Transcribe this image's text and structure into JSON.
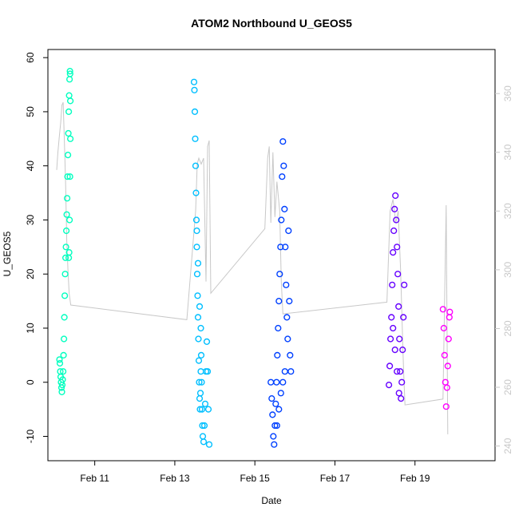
{
  "chart_data": {
    "type": "scatter",
    "title": "ATOM2 Northbound U_GEOS5",
    "xlabel": "Date",
    "ylabel": "U_GEOS5",
    "x_unit": "days (February)",
    "xlim": [
      9.83,
      21.0
    ],
    "ylim": [
      -14.5,
      61.5
    ],
    "x_ticks": [
      {
        "value": 11,
        "label": "Feb 11"
      },
      {
        "value": 13,
        "label": "Feb 13"
      },
      {
        "value": 15,
        "label": "Feb 15"
      },
      {
        "value": 17,
        "label": "Feb 17"
      },
      {
        "value": 19,
        "label": "Feb 19"
      }
    ],
    "y_ticks": [
      {
        "value": -10,
        "label": "-10"
      },
      {
        "value": 0,
        "label": "0"
      },
      {
        "value": 10,
        "label": "10"
      },
      {
        "value": 20,
        "label": "20"
      },
      {
        "value": 30,
        "label": "30"
      },
      {
        "value": 40,
        "label": "40"
      },
      {
        "value": 50,
        "label": "50"
      },
      {
        "value": 60,
        "label": "60"
      }
    ],
    "y2lim": [
      235,
      375
    ],
    "y2_ticks": [
      {
        "value": 240,
        "label": "240"
      },
      {
        "value": 260,
        "label": "260"
      },
      {
        "value": 280,
        "label": "280"
      },
      {
        "value": 300,
        "label": "300"
      },
      {
        "value": 320,
        "label": "320"
      },
      {
        "value": 340,
        "label": "340"
      },
      {
        "value": 360,
        "label": "360"
      }
    ],
    "grid": false,
    "series": [
      {
        "color": "#00ffbf",
        "points": [
          [
            10.12,
            4.2
          ],
          [
            10.13,
            3.5
          ],
          [
            10.14,
            2.0
          ],
          [
            10.15,
            1.0
          ],
          [
            10.16,
            0.0
          ],
          [
            10.17,
            -1.0
          ],
          [
            10.18,
            -1.8
          ],
          [
            10.19,
            -0.5
          ],
          [
            10.2,
            0.5
          ],
          [
            10.21,
            2.0
          ],
          [
            10.22,
            5.0
          ],
          [
            10.23,
            8.0
          ],
          [
            10.24,
            12.0
          ],
          [
            10.25,
            16.0
          ],
          [
            10.26,
            20.0
          ],
          [
            10.27,
            23.0
          ],
          [
            10.28,
            25.0
          ],
          [
            10.29,
            28.0
          ],
          [
            10.3,
            31.0
          ],
          [
            10.31,
            34.0
          ],
          [
            10.32,
            38.0
          ],
          [
            10.33,
            42.0
          ],
          [
            10.34,
            46.0
          ],
          [
            10.35,
            50.0
          ],
          [
            10.36,
            53.0
          ],
          [
            10.37,
            56.0
          ],
          [
            10.38,
            57.5
          ],
          [
            10.385,
            57.0
          ],
          [
            10.39,
            52.0
          ],
          [
            10.39,
            45.0
          ],
          [
            10.38,
            38.0
          ],
          [
            10.37,
            30.0
          ],
          [
            10.36,
            24.0
          ],
          [
            10.35,
            23.0
          ]
        ]
      },
      {
        "color": "#00bfff",
        "points": [
          [
            13.48,
            55.5
          ],
          [
            13.49,
            54.0
          ],
          [
            13.5,
            50.0
          ],
          [
            13.51,
            45.0
          ],
          [
            13.52,
            40.0
          ],
          [
            13.53,
            35.0
          ],
          [
            13.54,
            30.0
          ],
          [
            13.55,
            25.0
          ],
          [
            13.56,
            20.0
          ],
          [
            13.57,
            16.0
          ],
          [
            13.58,
            12.0
          ],
          [
            13.59,
            8.0
          ],
          [
            13.6,
            4.0
          ],
          [
            13.61,
            0.0
          ],
          [
            13.62,
            -3.0
          ],
          [
            13.63,
            -5.0
          ],
          [
            13.64,
            -2.0
          ],
          [
            13.65,
            2.0
          ],
          [
            13.66,
            5.0
          ],
          [
            13.67,
            0.0
          ],
          [
            13.68,
            -5.0
          ],
          [
            13.69,
            -8.0
          ],
          [
            13.7,
            -10.0
          ],
          [
            13.72,
            -11.0
          ],
          [
            13.74,
            -8.0
          ],
          [
            13.76,
            -4.0
          ],
          [
            13.78,
            2.0
          ],
          [
            13.8,
            7.5
          ],
          [
            13.82,
            2.0
          ],
          [
            13.84,
            -5.0
          ],
          [
            13.86,
            -11.5
          ],
          [
            13.55,
            28.0
          ],
          [
            13.58,
            22.0
          ],
          [
            13.62,
            14.0
          ],
          [
            13.65,
            10.0
          ]
        ]
      },
      {
        "color": "#0040ff",
        "points": [
          [
            15.4,
            0.0
          ],
          [
            15.42,
            -3.0
          ],
          [
            15.44,
            -6.0
          ],
          [
            15.46,
            -10.0
          ],
          [
            15.48,
            -11.5
          ],
          [
            15.5,
            -8.0
          ],
          [
            15.52,
            -4.0
          ],
          [
            15.54,
            0.0
          ],
          [
            15.56,
            5.0
          ],
          [
            15.58,
            10.0
          ],
          [
            15.6,
            15.0
          ],
          [
            15.62,
            20.0
          ],
          [
            15.64,
            25.0
          ],
          [
            15.66,
            30.0
          ],
          [
            15.68,
            38.0
          ],
          [
            15.7,
            44.5
          ],
          [
            15.72,
            40.0
          ],
          [
            15.74,
            32.0
          ],
          [
            15.76,
            25.0
          ],
          [
            15.78,
            18.0
          ],
          [
            15.8,
            12.0
          ],
          [
            15.82,
            8.0
          ],
          [
            15.84,
            28.0
          ],
          [
            15.86,
            15.0
          ],
          [
            15.88,
            5.0
          ],
          [
            15.9,
            2.0
          ],
          [
            15.55,
            -8.0
          ],
          [
            15.6,
            -5.0
          ],
          [
            15.65,
            -2.0
          ],
          [
            15.7,
            0.0
          ],
          [
            15.75,
            2.0
          ]
        ]
      },
      {
        "color": "#6600ff",
        "points": [
          [
            18.35,
            -0.5
          ],
          [
            18.37,
            3.0
          ],
          [
            18.39,
            8.0
          ],
          [
            18.41,
            12.0
          ],
          [
            18.43,
            18.0
          ],
          [
            18.45,
            24.0
          ],
          [
            18.47,
            28.0
          ],
          [
            18.49,
            32.0
          ],
          [
            18.51,
            34.5
          ],
          [
            18.53,
            30.0
          ],
          [
            18.55,
            25.0
          ],
          [
            18.57,
            20.0
          ],
          [
            18.59,
            14.0
          ],
          [
            18.61,
            8.0
          ],
          [
            18.63,
            2.0
          ],
          [
            18.65,
            -3.0
          ],
          [
            18.67,
            0.0
          ],
          [
            18.69,
            6.0
          ],
          [
            18.71,
            12.0
          ],
          [
            18.73,
            18.0
          ],
          [
            18.45,
            10.0
          ],
          [
            18.5,
            6.0
          ],
          [
            18.55,
            2.0
          ],
          [
            18.6,
            -2.0
          ]
        ]
      },
      {
        "color": "#ff00ff",
        "points": [
          [
            19.7,
            13.5
          ],
          [
            19.72,
            10.0
          ],
          [
            19.74,
            5.0
          ],
          [
            19.76,
            0.0
          ],
          [
            19.78,
            -4.5
          ],
          [
            19.8,
            -1.0
          ],
          [
            19.82,
            3.0
          ],
          [
            19.84,
            8.0
          ],
          [
            19.86,
            12.0
          ],
          [
            19.87,
            13.0
          ]
        ]
      }
    ],
    "secondary_line": {
      "axis": "right",
      "color": "#c8c8c8",
      "points": [
        [
          10.05,
          334.0
        ],
        [
          10.08,
          340.0
        ],
        [
          10.12,
          346.0
        ],
        [
          10.15,
          350.0
        ],
        [
          10.18,
          356.0
        ],
        [
          10.21,
          357.0
        ],
        [
          10.24,
          344.0
        ],
        [
          10.27,
          330.0
        ],
        [
          10.3,
          310.0
        ],
        [
          10.33,
          300.0
        ],
        [
          10.36,
          292.0
        ],
        [
          10.4,
          288.0
        ],
        [
          13.3,
          283.0
        ],
        [
          13.52,
          320.0
        ],
        [
          13.56,
          336.0
        ],
        [
          13.6,
          338.0
        ],
        [
          13.66,
          336.0
        ],
        [
          13.72,
          338.0
        ],
        [
          13.78,
          296.0
        ],
        [
          13.82,
          342.0
        ],
        [
          13.86,
          344.0
        ],
        [
          13.9,
          292.0
        ],
        [
          15.25,
          314.0
        ],
        [
          15.32,
          338.0
        ],
        [
          15.36,
          342.0
        ],
        [
          15.4,
          316.0
        ],
        [
          15.45,
          340.0
        ],
        [
          15.5,
          318.0
        ],
        [
          15.55,
          330.0
        ],
        [
          15.62,
          320.0
        ],
        [
          15.66,
          296.0
        ],
        [
          15.7,
          285.0
        ],
        [
          18.3,
          289.0
        ],
        [
          18.38,
          320.0
        ],
        [
          18.45,
          324.0
        ],
        [
          18.52,
          316.0
        ],
        [
          18.58,
          320.0
        ],
        [
          18.64,
          300.0
        ],
        [
          18.7,
          272.0
        ],
        [
          18.72,
          264.0
        ],
        [
          18.75,
          254.0
        ],
        [
          19.7,
          256.0
        ],
        [
          19.78,
          322.0
        ],
        [
          19.82,
          244.0
        ]
      ]
    }
  }
}
